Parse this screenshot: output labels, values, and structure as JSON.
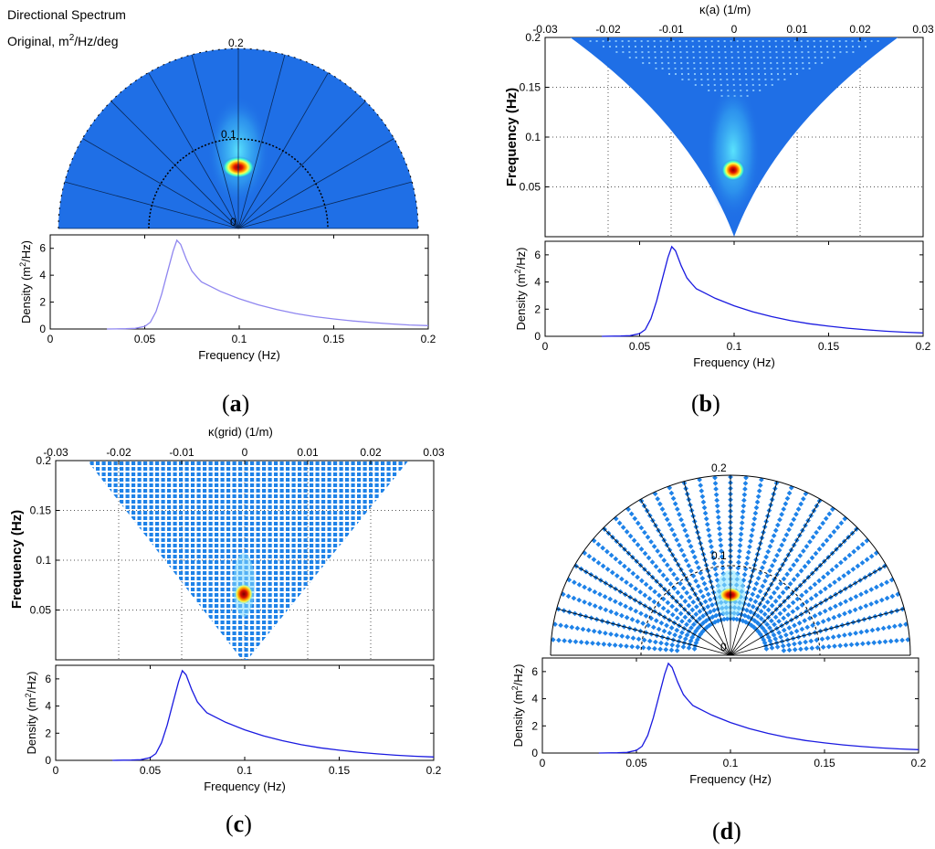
{
  "colors": {
    "field_blue": "#1f6fe6",
    "curve_a": "#8f86f0",
    "curve": "#1a1ae0",
    "marker": "#1e82e8",
    "peak": "#c81a00"
  },
  "panels": {
    "a": {
      "letter": "a",
      "title_line1": "Directional Spectrum",
      "title_line2_prefix": "Original, m",
      "title_line2_sup": "2",
      "title_line2_suffix": "/Hz/deg"
    },
    "b": {
      "letter": "b"
    },
    "c": {
      "letter": "c"
    },
    "d": {
      "letter": "d"
    }
  },
  "chart_data": [
    {
      "id": "a-polar",
      "type": "heatmap",
      "title": "Directional Spectrum Original, m2/Hz/deg",
      "radial_ticks": [
        "0.2",
        "0.1",
        "0"
      ],
      "rlim": [
        0,
        0.2
      ],
      "peak": {
        "frequency": 0.067,
        "direction_deg": 90
      }
    },
    {
      "id": "b-kappa",
      "type": "heatmap",
      "xlabel": "κ(a) (1/m)",
      "ylabel": "Frequency (Hz)",
      "xlim": [
        -0.03,
        0.03
      ],
      "ylim": [
        0,
        0.2
      ],
      "x_ticks": [
        "-0.03",
        "-0.02",
        "-0.01",
        "0",
        "0.01",
        "0.02",
        "0.03"
      ],
      "y_ticks": [
        "0.05",
        "0.1",
        "0.15",
        "0.2"
      ],
      "peak": {
        "kappa": 0,
        "frequency": 0.067
      }
    },
    {
      "id": "c-kappa",
      "type": "scatter",
      "xlabel": "κ(grid) (1/m)",
      "ylabel": "Frequency (Hz)",
      "xlim": [
        -0.03,
        0.03
      ],
      "ylim": [
        0,
        0.2
      ],
      "x_ticks": [
        "-0.03",
        "-0.02",
        "-0.01",
        "0",
        "0.01",
        "0.02",
        "0.03"
      ],
      "y_ticks": [
        "0.05",
        "0.1",
        "0.15",
        "0.2"
      ],
      "peak": {
        "kappa": 0,
        "frequency": 0.067
      }
    },
    {
      "id": "d-polar",
      "type": "scatter",
      "radial_ticks": [
        "0.2",
        "0.1",
        "0"
      ],
      "rlim": [
        0,
        0.2
      ],
      "peak": {
        "frequency": 0.067,
        "direction_deg": 90
      }
    },
    {
      "id": "density",
      "type": "line",
      "xlabel": "Frequency (Hz)",
      "ylabel_prefix": "Density (m",
      "ylabel_sup": "2",
      "ylabel_suffix": "/Hz)",
      "xlim": [
        0,
        0.2
      ],
      "ylim": [
        0,
        7
      ],
      "x_ticks": [
        "0",
        "0.05",
        "0.1",
        "0.15",
        "0.2"
      ],
      "y_ticks": [
        "0",
        "2",
        "4",
        "6"
      ],
      "series": [
        {
          "name": "density",
          "x": [
            0.03,
            0.04,
            0.045,
            0.05,
            0.053,
            0.056,
            0.059,
            0.062,
            0.065,
            0.067,
            0.069,
            0.072,
            0.075,
            0.078,
            0.08,
            0.085,
            0.09,
            0.1,
            0.11,
            0.12,
            0.13,
            0.14,
            0.15,
            0.16,
            0.17,
            0.18,
            0.19,
            0.2
          ],
          "y": [
            0,
            0.02,
            0.05,
            0.2,
            0.5,
            1.3,
            2.6,
            4.2,
            5.8,
            6.6,
            6.3,
            5.2,
            4.3,
            3.8,
            3.5,
            3.15,
            2.8,
            2.25,
            1.8,
            1.45,
            1.15,
            0.92,
            0.75,
            0.6,
            0.48,
            0.38,
            0.3,
            0.25
          ]
        }
      ]
    }
  ]
}
